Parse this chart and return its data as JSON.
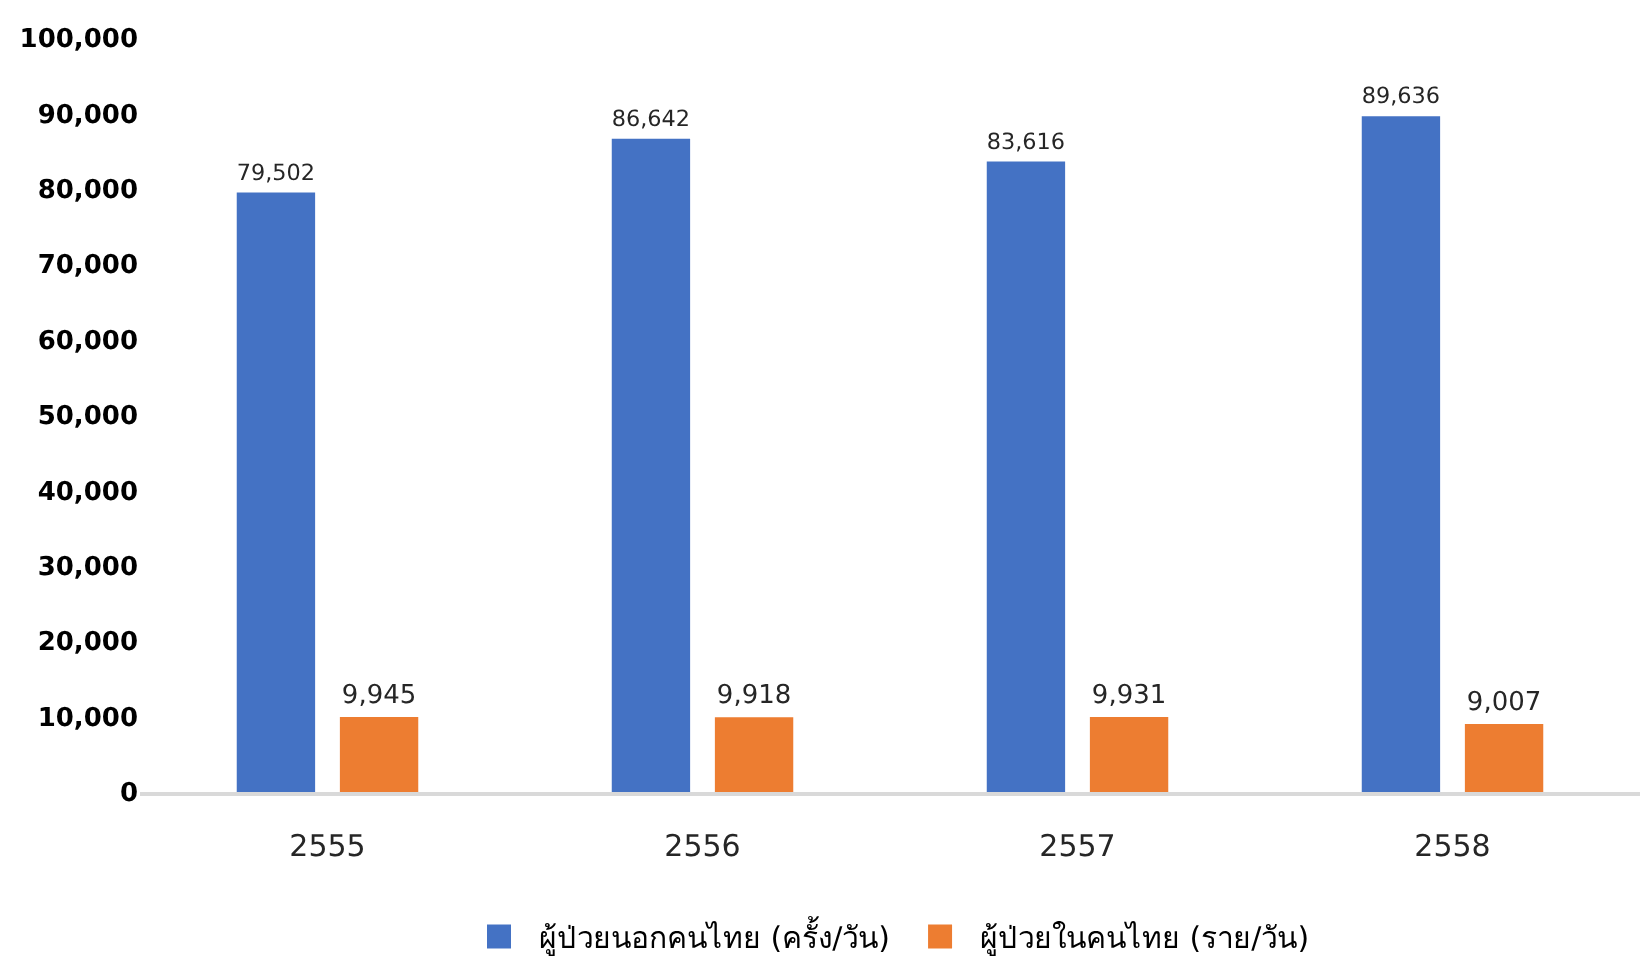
{
  "chart_data": {
    "type": "bar",
    "categories": [
      "2555",
      "2556",
      "2557",
      "2558"
    ],
    "series": [
      {
        "name": "ผู้ป่วยนอกคนไทย (ครั้ง/วัน)",
        "color": "#4472c4",
        "values": [
          79502,
          86642,
          83616,
          89636
        ],
        "value_labels": [
          "79,502",
          "86,642",
          "83,616",
          "89,636"
        ]
      },
      {
        "name": "ผู้ป่วยในคนไทย (ราย/วัน)",
        "color": "#ed7d31",
        "values": [
          9945,
          9918,
          9931,
          9007
        ],
        "value_labels": [
          "9,945",
          "9,918",
          "9,931",
          "9,007"
        ]
      }
    ],
    "ylim": [
      0,
      100000
    ],
    "yticks": [
      {
        "value": 0,
        "label": "0"
      },
      {
        "value": 10000,
        "label": "10,000"
      },
      {
        "value": 20000,
        "label": "20,000"
      },
      {
        "value": 30000,
        "label": "30,000"
      },
      {
        "value": 40000,
        "label": "40,000"
      },
      {
        "value": 50000,
        "label": "50,000"
      },
      {
        "value": 60000,
        "label": "60,000"
      },
      {
        "value": 70000,
        "label": "70,000"
      },
      {
        "value": 80000,
        "label": "80,000"
      },
      {
        "value": 90000,
        "label": "90,000"
      },
      {
        "value": 100000,
        "label": "100,000"
      }
    ],
    "legend": "bottom"
  }
}
